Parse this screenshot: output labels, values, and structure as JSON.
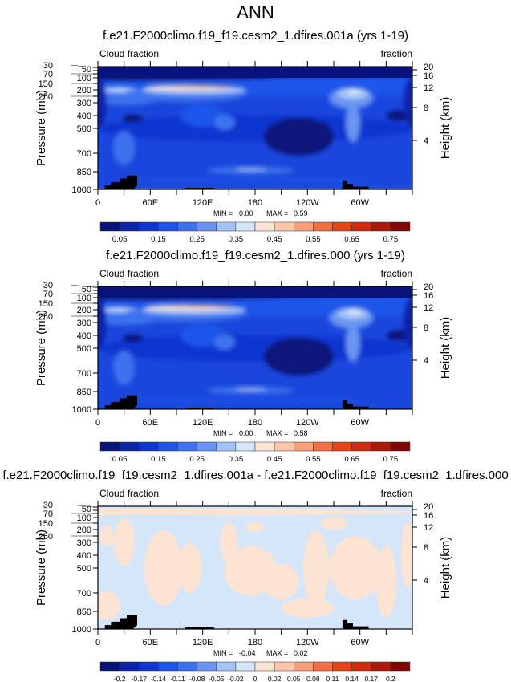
{
  "main_title": "ANN",
  "chart_data": [
    {
      "type": "heatmap",
      "title": "f.e21.F2000climo.f19_f19.cesm2_1.dfires.001a (yrs 1-19)",
      "left_label": "Cloud fraction",
      "right_label": "fraction",
      "ylabel": "Pressure (mb)",
      "y2label": "Height (km)",
      "xticks": [
        "0",
        "60E",
        "120E",
        "180",
        "120W",
        "60W"
      ],
      "yticks": [
        "1000",
        "850",
        "700",
        "500",
        "400",
        "300",
        "250",
        "200",
        "150",
        "100",
        "70",
        "50",
        "30"
      ],
      "y2ticks": [
        "20",
        "16",
        "12",
        "8",
        "4"
      ],
      "stats": {
        "min_label": "MIN =",
        "min": "0.00",
        "max_label": "MAX =",
        "max": "0.59"
      },
      "xlim": [
        0,
        360
      ],
      "ylim": [
        1000,
        30
      ],
      "levels": [
        "0.05",
        "0.1",
        "0.15",
        "0.2",
        "0.25",
        "0.3",
        "0.35",
        "0.4",
        "0.45",
        "0.5",
        "0.55",
        "0.6",
        "0.65",
        "0.7",
        "0.75"
      ],
      "level_labels": [
        "0.05",
        "",
        "0.15",
        "",
        "0.25",
        "",
        "0.35",
        "",
        "0.45",
        "",
        "0.55",
        "",
        "0.65",
        "",
        "0.75"
      ],
      "field": "full"
    },
    {
      "type": "heatmap",
      "title": "f.e21.F2000climo.f19_f19.cesm2_1.dfires.000 (yrs 1-19)",
      "left_label": "Cloud fraction",
      "right_label": "fraction",
      "ylabel": "Pressure (mb)",
      "y2label": "Height (km)",
      "xticks": [
        "0",
        "60E",
        "120E",
        "180",
        "120W",
        "60W"
      ],
      "yticks": [
        "1000",
        "850",
        "700",
        "500",
        "400",
        "300",
        "250",
        "200",
        "150",
        "100",
        "70",
        "50",
        "30"
      ],
      "y2ticks": [
        "20",
        "16",
        "12",
        "8",
        "4"
      ],
      "stats": {
        "min_label": "MIN =",
        "min": "0.00",
        "max_label": "MAX =",
        "max": "0.58"
      },
      "xlim": [
        0,
        360
      ],
      "ylim": [
        1000,
        30
      ],
      "levels": [
        "0.05",
        "0.1",
        "0.15",
        "0.2",
        "0.25",
        "0.3",
        "0.35",
        "0.4",
        "0.45",
        "0.5",
        "0.55",
        "0.6",
        "0.65",
        "0.7",
        "0.75"
      ],
      "level_labels": [
        "0.05",
        "",
        "0.15",
        "",
        "0.25",
        "",
        "0.35",
        "",
        "0.45",
        "",
        "0.55",
        "",
        "0.65",
        "",
        "0.75"
      ],
      "field": "full"
    },
    {
      "type": "heatmap",
      "title": "f.e21.F2000climo.f19_f19.cesm2_1.dfires.001a - f.e21.F2000climo.f19_f19.cesm2_1.dfires.000",
      "left_label": "Cloud fraction",
      "right_label": "fraction",
      "ylabel": "Pressure (mb)",
      "y2label": "Height (km)",
      "xticks": [
        "0",
        "60E",
        "120E",
        "180",
        "120W",
        "60W"
      ],
      "yticks": [
        "1000",
        "850",
        "700",
        "500",
        "400",
        "300",
        "250",
        "200",
        "150",
        "100",
        "70",
        "50",
        "30"
      ],
      "y2ticks": [
        "20",
        "16",
        "12",
        "8",
        "4"
      ],
      "stats": {
        "min_label": "MIN =",
        "min": "-0.04",
        "max_label": "MAX =",
        "max": "0.02"
      },
      "xlim": [
        0,
        360
      ],
      "ylim": [
        1000,
        30
      ],
      "levels": [
        "-0.2",
        "-0.17",
        "-0.14",
        "-0.11",
        "-0.08",
        "-0.05",
        "-0.02",
        "0",
        "0.02",
        "0.05",
        "0.08",
        "0.11",
        "0.14",
        "0.17",
        "0.2"
      ],
      "level_labels": [
        "-0.2",
        "-0.17",
        "-0.14",
        "-0.11",
        "-0.08",
        "-0.05",
        "-0.02",
        "0",
        "0.02",
        "0.05",
        "0.08",
        "0.11",
        "0.14",
        "0.17",
        "0.2"
      ],
      "field": "diff"
    }
  ],
  "colormap": [
    "#08137a",
    "#0a24a8",
    "#0d36d0",
    "#1e55ea",
    "#3d72ee",
    "#6994f2",
    "#a5c2f6",
    "#d5e6fb",
    "#fde4d2",
    "#fbc6a9",
    "#f7a079",
    "#f27044",
    "#ea4219",
    "#cf2b0c",
    "#ab1a08",
    "#800606"
  ]
}
